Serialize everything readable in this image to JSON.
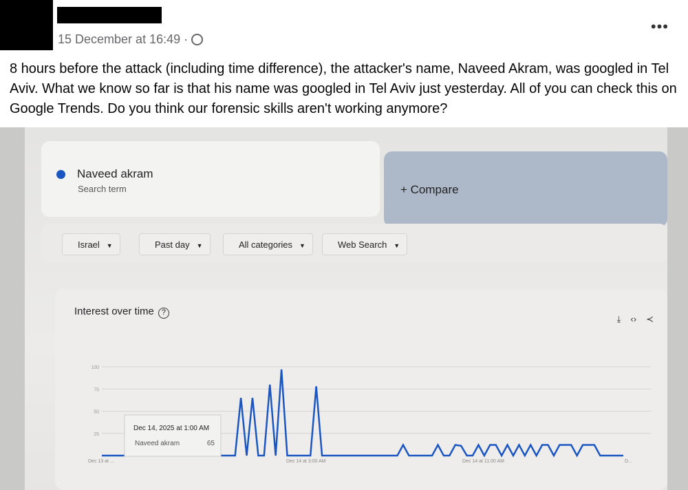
{
  "post": {
    "timestamp": "15 December at 16:49",
    "visibility_icon": "globe-icon",
    "more_label": "•••",
    "text": "8 hours before the attack (including time difference), the attacker's name, Naveed Akram, was googled in Tel Aviv. What we know so far is that his name was googled in Tel Aviv just yesterday. All of you can check this on Google Trends. Do you think our forensic skills aren't working anymore?"
  },
  "trends": {
    "term": {
      "name": "Naveed akram",
      "sub": "Search term",
      "color": "#1a56c2"
    },
    "compare": "+   Compare",
    "filters": [
      "Israel",
      "Past day",
      "All categories",
      "Web Search"
    ],
    "chart_title": "Interest over time",
    "tooltip": {
      "date": "Dec 14, 2025 at 1:00 AM",
      "series": "Naveed akram",
      "value": "65"
    }
  },
  "chart_data": {
    "type": "line",
    "title": "Interest over time",
    "ylim": [
      0,
      100
    ],
    "yticks": [
      "100",
      "75",
      "50",
      "25"
    ],
    "xtick_labels": [
      "Dec 13 at ...",
      "Dec 14 at 3:00 AM",
      "Dec 14 at 11:00 AM",
      "D..."
    ],
    "series": [
      {
        "name": "Naveed akram",
        "color": "#1a56c2",
        "points": [
          [
            24,
            65
          ],
          [
            26,
            65
          ],
          [
            29,
            80
          ],
          [
            31,
            97
          ],
          [
            37,
            78
          ],
          [
            52,
            12
          ],
          [
            58,
            12
          ],
          [
            61,
            12
          ],
          [
            62,
            11
          ],
          [
            65,
            12
          ],
          [
            67,
            12
          ],
          [
            68,
            12
          ],
          [
            70,
            12
          ],
          [
            72,
            12
          ],
          [
            74,
            12
          ],
          [
            76,
            12
          ],
          [
            77,
            12
          ],
          [
            79,
            12
          ],
          [
            80,
            12
          ],
          [
            81,
            12
          ],
          [
            83,
            12
          ],
          [
            84,
            12
          ],
          [
            85,
            12
          ]
        ]
      }
    ],
    "n_points": 90,
    "grid": true
  }
}
